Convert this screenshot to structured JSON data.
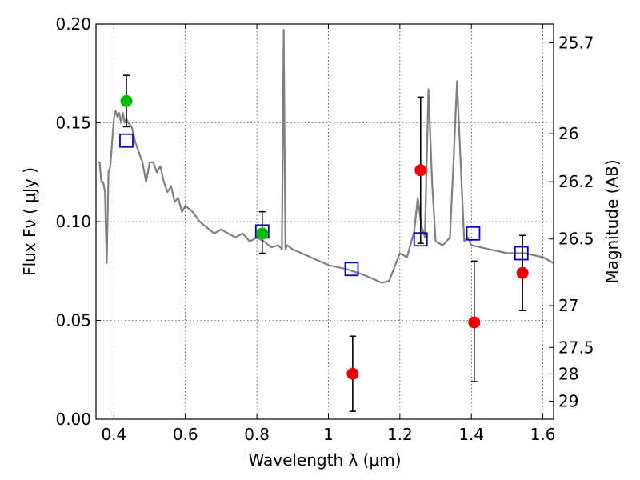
{
  "chart_data": {
    "type": "scatter",
    "xlabel": "Wavelength  λ (μm)",
    "ylabel": "Flux  Fν  ( μJy )",
    "y2label": "Magnitude (AB)",
    "xlim": [
      0.35,
      1.63
    ],
    "ylim": [
      0.0,
      0.2
    ],
    "grid": true,
    "x_ticks": [
      {
        "value": 0.4,
        "label": "0.4"
      },
      {
        "value": 0.6,
        "label": "0.6"
      },
      {
        "value": 0.8,
        "label": "0.8"
      },
      {
        "value": 1.0,
        "label": "1"
      },
      {
        "value": 1.2,
        "label": "1.2"
      },
      {
        "value": 1.4,
        "label": "1.4"
      },
      {
        "value": 1.6,
        "label": "1.6"
      }
    ],
    "y_ticks": [
      {
        "value": 0.0,
        "label": "0.00"
      },
      {
        "value": 0.05,
        "label": "0.05"
      },
      {
        "value": 0.1,
        "label": "0.10"
      },
      {
        "value": 0.15,
        "label": "0.15"
      },
      {
        "value": 0.2,
        "label": "0.20"
      }
    ],
    "mag_ticks": [
      {
        "label": "25.7",
        "flux": 0.1905
      },
      {
        "label": "26",
        "flux": 0.1445
      },
      {
        "label": "26.2",
        "flux": 0.1202
      },
      {
        "label": "26.5",
        "flux": 0.0912
      },
      {
        "label": "27",
        "flux": 0.0575
      },
      {
        "label": "27.5",
        "flux": 0.0363
      },
      {
        "label": "28",
        "flux": 0.0229
      },
      {
        "label": "29",
        "flux": 0.0091
      }
    ],
    "series": [
      {
        "kind": "line",
        "color": "#808080",
        "x": [
          0.355,
          0.36,
          0.365,
          0.37,
          0.375,
          0.38,
          0.385,
          0.39,
          0.395,
          0.4,
          0.405,
          0.41,
          0.415,
          0.42,
          0.425,
          0.43,
          0.435,
          0.44,
          0.45,
          0.46,
          0.47,
          0.48,
          0.49,
          0.5,
          0.51,
          0.52,
          0.53,
          0.54,
          0.55,
          0.56,
          0.57,
          0.58,
          0.59,
          0.6,
          0.62,
          0.64,
          0.66,
          0.68,
          0.7,
          0.72,
          0.74,
          0.76,
          0.78,
          0.8,
          0.82,
          0.84,
          0.86,
          0.87,
          0.875,
          0.88,
          0.885,
          0.9,
          0.95,
          1.0,
          1.05,
          1.1,
          1.15,
          1.17,
          1.2,
          1.22,
          1.24,
          1.25,
          1.26,
          1.27,
          1.28,
          1.29,
          1.3,
          1.32,
          1.34,
          1.35,
          1.36,
          1.37,
          1.38,
          1.39,
          1.4,
          1.45,
          1.5,
          1.55,
          1.6,
          1.63
        ],
        "y": [
          0.13,
          0.13,
          0.12,
          0.12,
          0.115,
          0.079,
          0.125,
          0.128,
          0.14,
          0.152,
          0.156,
          0.153,
          0.155,
          0.15,
          0.155,
          0.15,
          0.152,
          0.15,
          0.148,
          0.14,
          0.135,
          0.13,
          0.12,
          0.13,
          0.13,
          0.125,
          0.128,
          0.12,
          0.115,
          0.118,
          0.11,
          0.112,
          0.105,
          0.108,
          0.105,
          0.1,
          0.097,
          0.094,
          0.096,
          0.094,
          0.092,
          0.094,
          0.09,
          0.092,
          0.09,
          0.087,
          0.088,
          0.086,
          0.197,
          0.086,
          0.088,
          0.086,
          0.082,
          0.078,
          0.076,
          0.073,
          0.069,
          0.07,
          0.084,
          0.082,
          0.095,
          0.112,
          0.098,
          0.092,
          0.167,
          0.12,
          0.09,
          0.088,
          0.092,
          0.13,
          0.171,
          0.13,
          0.09,
          0.092,
          0.088,
          0.086,
          0.084,
          0.084,
          0.082,
          0.079
        ]
      },
      {
        "kind": "squares",
        "color": "#0000cc",
        "x": [
          0.435,
          0.815,
          1.065,
          1.258,
          1.405,
          1.54
        ],
        "y": [
          0.141,
          0.095,
          0.076,
          0.091,
          0.094,
          0.084
        ]
      },
      {
        "kind": "points",
        "color": "#00bb00",
        "x": [
          0.435,
          0.815
        ],
        "y": [
          0.161,
          0.094
        ],
        "yerr_low": [
          0.148,
          0.084
        ],
        "yerr_high": [
          0.174,
          0.105
        ]
      },
      {
        "kind": "points",
        "color": "#ee0000",
        "x": [
          1.068,
          1.258,
          1.408,
          1.543
        ],
        "y": [
          0.023,
          0.126,
          0.049,
          0.074
        ],
        "yerr_low": [
          0.004,
          0.089,
          0.019,
          0.055
        ],
        "yerr_high": [
          0.042,
          0.163,
          0.08,
          0.093
        ]
      }
    ]
  }
}
